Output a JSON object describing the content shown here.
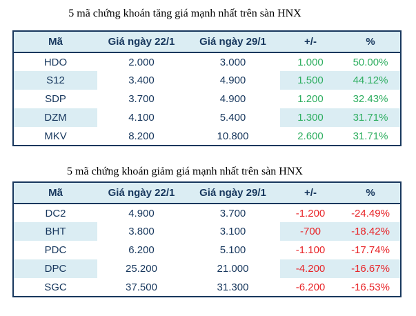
{
  "colors": {
    "positive_change": "#2eae60",
    "negative_change": "#e82428",
    "header_text": "#17375d",
    "band_background": "#dbedf3",
    "table_border": "#17375d"
  },
  "chart_data": [
    {
      "type": "table",
      "title": "5 mã chứng khoán tăng giá mạnh nhất trên sàn HNX",
      "columns": [
        "Mã",
        "Giá ngày 22/1",
        "Giá ngày 29/1",
        "+/-",
        "%"
      ],
      "rows": [
        [
          "HDO",
          "2.000",
          "3.000",
          "1.000",
          "50.00%"
        ],
        [
          "S12",
          "3.400",
          "4.900",
          "1.500",
          "44.12%"
        ],
        [
          "SDP",
          "3.700",
          "4.900",
          "1.200",
          "32.43%"
        ],
        [
          "DZM",
          "4.100",
          "5.400",
          "1.300",
          "31.71%"
        ],
        [
          "MKV",
          "8.200",
          "10.800",
          "2.600",
          "31.71%"
        ]
      ]
    },
    {
      "type": "table",
      "title": "5 mã chứng khoán giảm giá mạnh nhất trên sàn HNX",
      "columns": [
        "Mã",
        "Giá ngày 22/1",
        "Giá ngày 29/1",
        "+/-",
        "%"
      ],
      "rows": [
        [
          "DC2",
          "4.900",
          "3.700",
          "-1.200",
          "-24.49%"
        ],
        [
          "BHT",
          "3.800",
          "3.100",
          "-700",
          "-18.42%"
        ],
        [
          "PDC",
          "6.200",
          "5.100",
          "-1.100",
          "-17.74%"
        ],
        [
          "DPC",
          "25.200",
          "21.000",
          "-4.200",
          "-16.67%"
        ],
        [
          "SGC",
          "37.500",
          "31.300",
          "-6.200",
          "-16.53%"
        ]
      ]
    }
  ]
}
